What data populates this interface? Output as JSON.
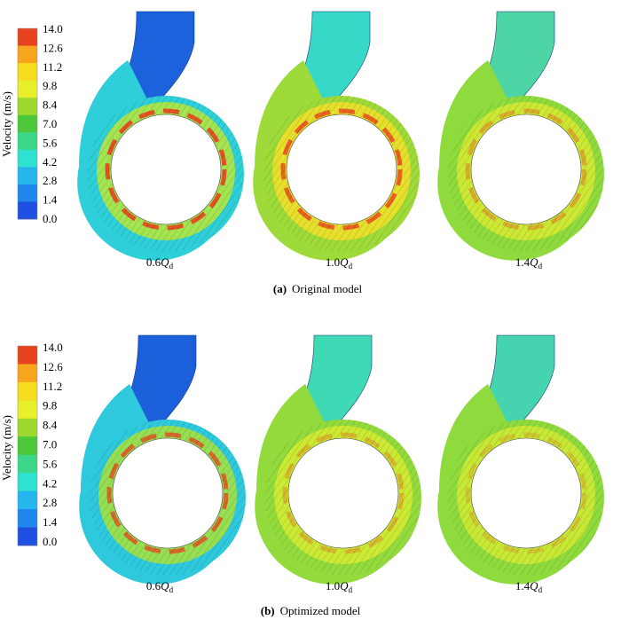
{
  "colorbar": {
    "title": "Velocity (m/s)",
    "ticks": [
      "14.0",
      "12.6",
      "11.2",
      "9.8",
      "8.4",
      "7.0",
      "5.6",
      "4.2",
      "2.8",
      "1.4",
      "0.0"
    ],
    "colors": [
      "#e8421e",
      "#f7a51c",
      "#f5dc1f",
      "#e7f02a",
      "#9ed92d",
      "#4cc83a",
      "#3bd88a",
      "#2fe1cf",
      "#25b6ee",
      "#1e86ec",
      "#1f4fe0"
    ]
  },
  "panels": [
    {
      "caption_bold": "(a)",
      "caption_text": "Original model",
      "cases": [
        {
          "label": "0.6",
          "sub": "d",
          "inlet": "#1c62dc",
          "shell": "#2ecfd8",
          "inner": "#b9e83a",
          "hot": 0.9
        },
        {
          "label": "1.0",
          "sub": "d",
          "inlet": "#38d8c8",
          "shell": "#9edb3a",
          "inner": "#f2df2a",
          "hot": 0.8
        },
        {
          "label": "1.4",
          "sub": "d",
          "inlet": "#4dd5a6",
          "shell": "#8fdb3d",
          "inner": "#d8ea33",
          "hot": 0.35
        }
      ]
    },
    {
      "caption_bold": "(b)",
      "caption_text": "Optimized model",
      "cases": [
        {
          "label": "0.6",
          "sub": "d",
          "inlet": "#1c5fda",
          "shell": "#2ec9dd",
          "inner": "#a9e33a",
          "hot": 0.75
        },
        {
          "label": "1.0",
          "sub": "d",
          "inlet": "#3fd9b6",
          "shell": "#93db3c",
          "inner": "#d6ec33",
          "hot": 0.3
        },
        {
          "label": "1.4",
          "sub": "d",
          "inlet": "#45d3b0",
          "shell": "#8fdb3d",
          "inner": "#d2ea35",
          "hot": 0.2
        }
      ]
    }
  ],
  "flow_symbol": "Q"
}
